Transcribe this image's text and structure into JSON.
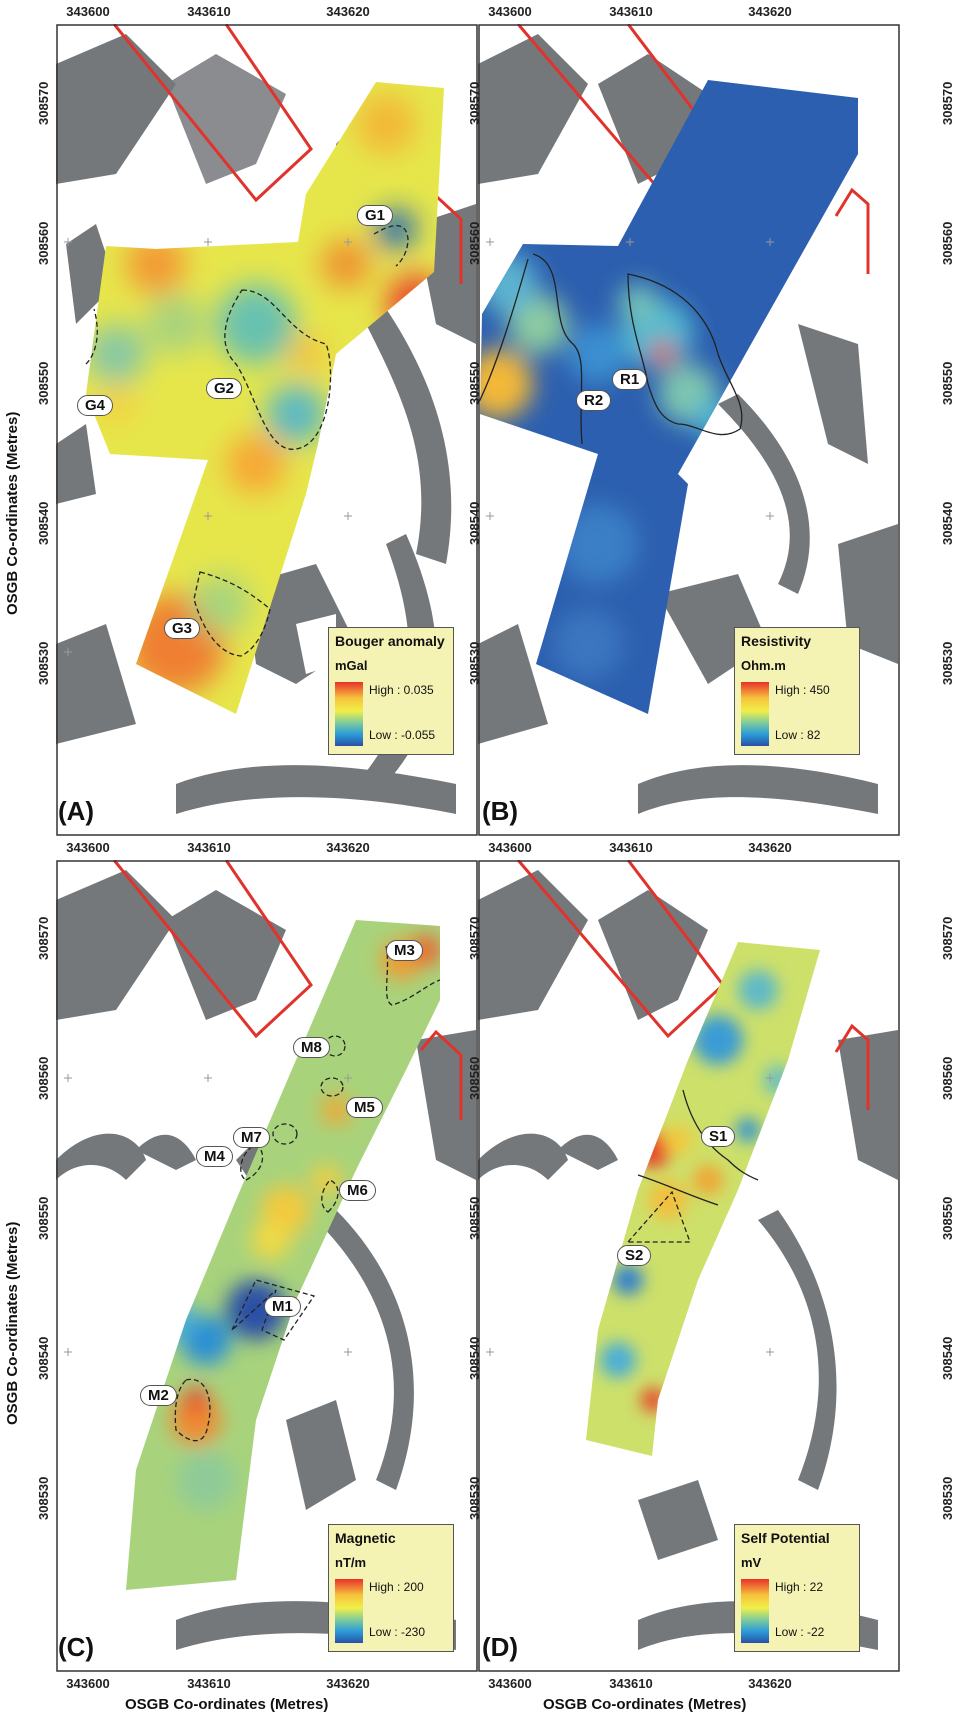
{
  "axes": {
    "x_ticks": [
      "343600",
      "343610",
      "343620"
    ],
    "y_ticks": [
      "308570",
      "308560",
      "308550",
      "308540",
      "308530"
    ],
    "x_title": "OSGB Co-ordinates (Metres)",
    "y_title": "OSGB Co-ordinates (Metres)"
  },
  "panels": [
    {
      "label": "(A)",
      "legend": {
        "title": "Bouger anomaly",
        "unit": "mGal",
        "high": "High : 0.035",
        "low": "Low : -0.055"
      },
      "annotations": [
        "G1",
        "G2",
        "G3",
        "G4"
      ]
    },
    {
      "label": "(B)",
      "legend": {
        "title": "Resistivity",
        "unit": "Ohm.m",
        "high": "High : 450",
        "low": "Low : 82"
      },
      "annotations": [
        "R1",
        "R2"
      ]
    },
    {
      "label": "(C)",
      "legend": {
        "title": "Magnetic",
        "unit": "nT/m",
        "high": "High : 200",
        "low": "Low : -230"
      },
      "annotations": [
        "M1",
        "M2",
        "M3",
        "M4",
        "M5",
        "M6",
        "M7",
        "M8"
      ]
    },
    {
      "label": "(D)",
      "legend": {
        "title": "Self Potential",
        "unit": "mV",
        "high": "High : 22",
        "low": "Low : -22"
      },
      "annotations": [
        "S1",
        "S2"
      ]
    }
  ],
  "colors": {
    "map_features": "#6e7174",
    "boundary": "#e0332c",
    "legend_bg": "#f5f3b4",
    "ramp_high": "#e8312a",
    "ramp_mid": "#f1ef48",
    "ramp_low": "#2a4fa6"
  }
}
